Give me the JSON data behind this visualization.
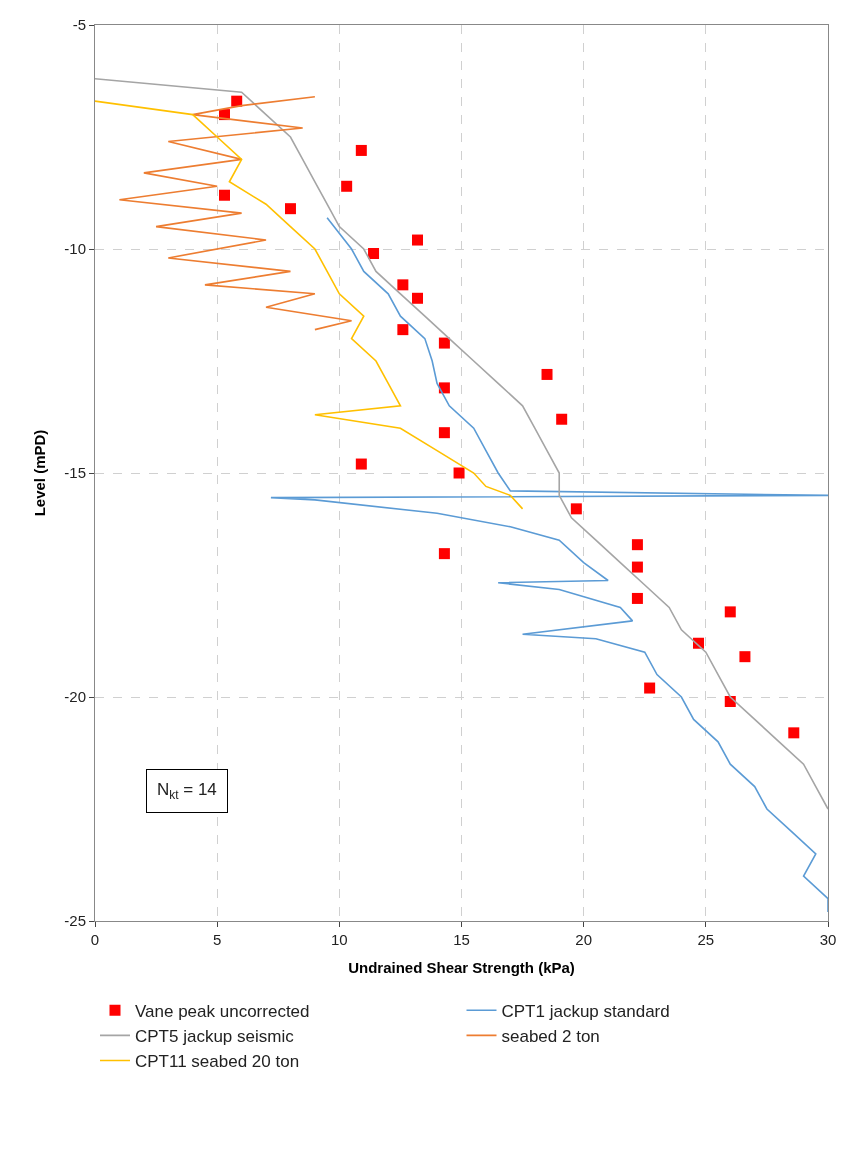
{
  "chart_data": {
    "type": "line",
    "xlabel": "Undrained Shear Strength (kPa)",
    "ylabel": "Level (mPD)",
    "xlim": [
      0,
      30
    ],
    "xticks": [
      0,
      5,
      10,
      15,
      20,
      25,
      30
    ],
    "ylim": [
      -25,
      -5
    ],
    "yticks": [
      -25,
      -20,
      -15,
      -10,
      -5
    ],
    "grid": true,
    "legend": "bottom",
    "annotations": [
      "N$_{kt}$ = 14"
    ],
    "series": [
      {
        "name": "Vane peak uncorrected",
        "type": "scatter",
        "marker": "square",
        "color": "#ff0000",
        "x": [
          5.3,
          5.8,
          10.9,
          10.3,
          5.3,
          8.0,
          13.2,
          11.4,
          12.6,
          13.2,
          12.6,
          14.3,
          18.5,
          14.3,
          19.1,
          14.3,
          10.9,
          14.9,
          19.7,
          22.2,
          22.2,
          22.2,
          14.3,
          26.0,
          24.7,
          26.6,
          22.7,
          26.0,
          28.6
        ],
        "values": [
          -7.0,
          -6.7,
          -7.8,
          -8.6,
          -8.8,
          -9.1,
          -9.8,
          -10.1,
          -10.8,
          -11.1,
          -11.8,
          -12.1,
          -12.8,
          -13.1,
          -13.8,
          -14.1,
          -14.8,
          -15.0,
          -15.8,
          -16.6,
          -17.1,
          -17.8,
          -16.8,
          -18.1,
          -18.8,
          -19.1,
          -19.8,
          -20.1,
          -20.8
        ]
      },
      {
        "name": "CPT1 jackup standard",
        "color": "#5b9bd5",
        "x": [
          9.5,
          10.5,
          11,
          12,
          12.5,
          13.5,
          13.8,
          14,
          14.5,
          15.5,
          16,
          16.5,
          17,
          30,
          7.2,
          9,
          14,
          17,
          19,
          20,
          21,
          16.5,
          19,
          21.5,
          22,
          17.5,
          20.5,
          22.5,
          23,
          24,
          24.5,
          25.5,
          26,
          27,
          27.5,
          28.5,
          29.5,
          29,
          30,
          30
        ],
        "values": [
          -9.3,
          -10,
          -10.5,
          -11,
          -11.5,
          -12,
          -12.5,
          -13,
          -13.5,
          -14,
          -14.5,
          -15,
          -15.4,
          -15.5,
          -15.55,
          -15.6,
          -15.9,
          -16.2,
          -16.5,
          -17,
          -17.4,
          -17.45,
          -17.6,
          -18,
          -18.3,
          -18.6,
          -18.7,
          -19,
          -19.5,
          -20,
          -20.5,
          -21,
          -21.5,
          -22,
          -22.5,
          -23,
          -23.5,
          -24,
          -24.5,
          -24.8
        ]
      },
      {
        "name": "CPT5 jackup seismic",
        "color": "#a5a5a5",
        "x": [
          0,
          6,
          7,
          8,
          8.5,
          9,
          9.5,
          10,
          11,
          11.5,
          12.5,
          13.5,
          14.5,
          15.5,
          16.5,
          17.5,
          18,
          18.5,
          19,
          19,
          19.5,
          20.5,
          21.5,
          22.5,
          23.5,
          24,
          25,
          25.5,
          26,
          27,
          28,
          29,
          29.5,
          30
        ],
        "values": [
          -6.2,
          -6.5,
          -7,
          -7.5,
          -8,
          -8.5,
          -9,
          -9.5,
          -10,
          -10.5,
          -11,
          -11.5,
          -12,
          -12.5,
          -13,
          -13.5,
          -14,
          -14.5,
          -15,
          -15.5,
          -16,
          -16.5,
          -17,
          -17.5,
          -18,
          -18.5,
          -19,
          -19.5,
          -20,
          -20.5,
          -21,
          -21.5,
          -22,
          -22.5
        ]
      },
      {
        "name": "seabed 2 ton",
        "color": "#ed7d31",
        "x": [
          9,
          6,
          4,
          8.5,
          3,
          6,
          2,
          5,
          1,
          6,
          2.5,
          7,
          3,
          8,
          4.5,
          9,
          7,
          10.5,
          9
        ],
        "values": [
          -6.6,
          -6.8,
          -7,
          -7.3,
          -7.6,
          -8,
          -8.3,
          -8.6,
          -8.9,
          -9.2,
          -9.5,
          -9.8,
          -10.2,
          -10.5,
          -10.8,
          -11,
          -11.3,
          -11.6,
          -11.8
        ]
      },
      {
        "name": "CPT11 seabed 20 ton",
        "color": "#ffc000",
        "x": [
          0,
          4,
          5,
          6,
          5.5,
          7,
          8,
          9,
          9.5,
          10,
          11,
          10.5,
          11.5,
          12,
          12.5,
          9,
          12.5,
          14,
          15.5,
          16,
          17,
          17.5
        ],
        "values": [
          -6.7,
          -7,
          -7.5,
          -8,
          -8.5,
          -9,
          -9.5,
          -10,
          -10.5,
          -11,
          -11.5,
          -12,
          -12.5,
          -13,
          -13.5,
          -13.7,
          -14,
          -14.5,
          -15,
          -15.3,
          -15.5,
          -15.8
        ]
      }
    ]
  }
}
